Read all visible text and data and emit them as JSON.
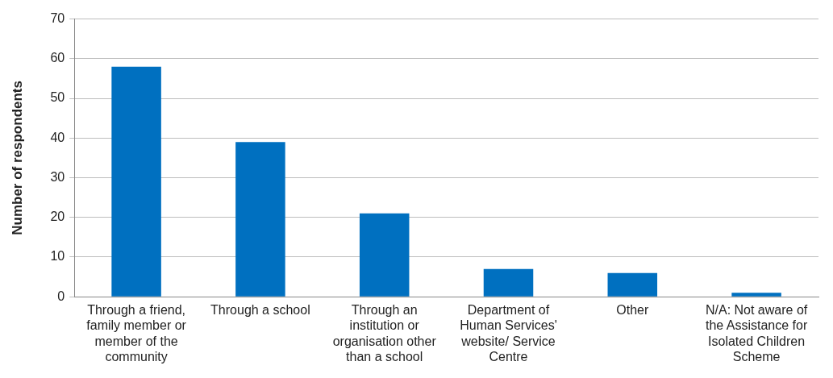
{
  "chart_data": {
    "type": "bar",
    "ylabel": "Number of respondents",
    "categories": [
      "Through a friend, family member or member of the community",
      "Through a school",
      "Through an institution or organisation other than a school",
      "Department of Human Services' website/ Service Centre",
      "Other",
      "N/A: Not aware of the Assistance for Isolated Children Scheme"
    ],
    "values": [
      58,
      39,
      21,
      7,
      6,
      1
    ],
    "color": "#0070c0",
    "ylim": [
      0,
      70
    ],
    "yticks": [
      0,
      10,
      20,
      30,
      40,
      50,
      60,
      70
    ],
    "grid": "y",
    "legend": false
  }
}
